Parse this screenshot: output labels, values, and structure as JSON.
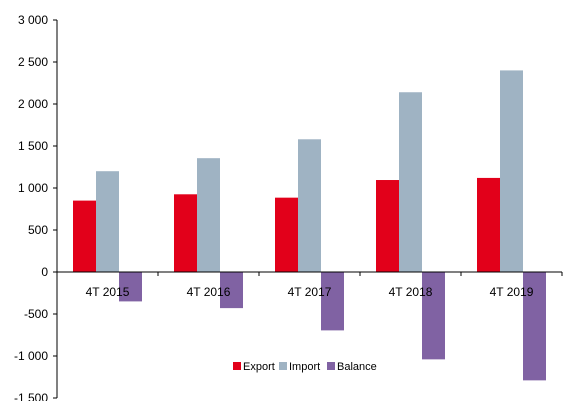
{
  "chart_data": {
    "type": "bar",
    "title": "",
    "xlabel": "",
    "ylabel": "",
    "categories": [
      "4T 2015",
      "4T 2016",
      "4T 2017",
      "4T 2018",
      "4T 2019"
    ],
    "series": [
      {
        "name": "Export",
        "color": "#e2001a",
        "values": [
          850,
          925,
          885,
          1095,
          1120
        ]
      },
      {
        "name": "Import",
        "color": "#9fb3c3",
        "values": [
          1200,
          1355,
          1580,
          2140,
          2400
        ]
      },
      {
        "name": "Balance",
        "color": "#8062a3",
        "values": [
          -350,
          -430,
          -695,
          -1040,
          -1290
        ]
      }
    ],
    "ylim": [
      -1500,
      3000
    ],
    "yticks": [
      {
        "value": 3000,
        "label": "3 000"
      },
      {
        "value": 2500,
        "label": "2 500"
      },
      {
        "value": 2000,
        "label": "2 000"
      },
      {
        "value": 1500,
        "label": "1 500"
      },
      {
        "value": 1000,
        "label": "1 000"
      },
      {
        "value": 500,
        "label": "500"
      },
      {
        "value": 0,
        "label": "0"
      },
      {
        "value": -500,
        "label": "-500"
      },
      {
        "value": -1000,
        "label": "-1 000"
      },
      {
        "value": -1500,
        "label": "-1 500"
      }
    ],
    "grid": false,
    "legend_position": "bottom-center"
  }
}
